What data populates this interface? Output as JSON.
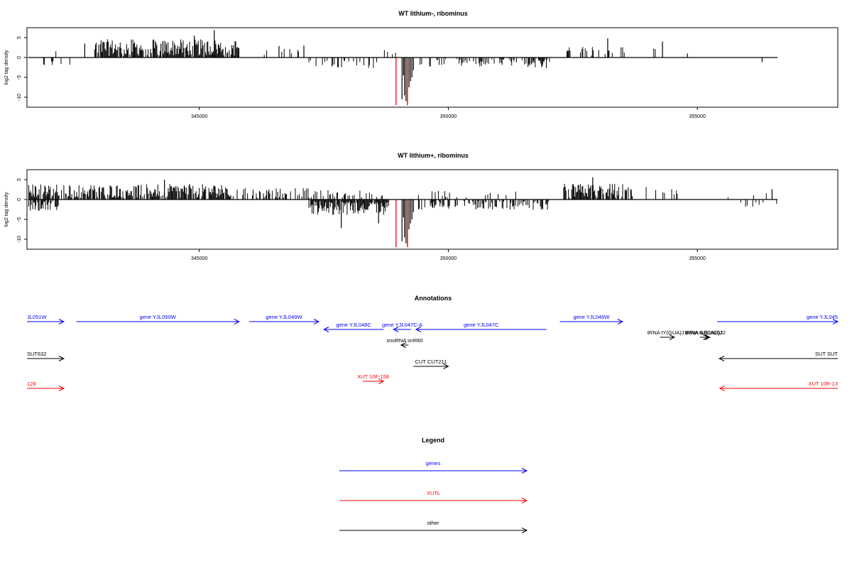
{
  "colors": {
    "gene": "#0000ff",
    "xut": "#ff0000",
    "other": "#000000",
    "signal": "#000000",
    "highlight": "#ff0000"
  },
  "chart_data": [
    {
      "type": "bar",
      "title": "WT lithium-, ribominus",
      "ylabel": "log2 tag density",
      "ylim": [
        -12.5,
        7.5
      ],
      "yticks": [
        5,
        0,
        -5,
        -10
      ],
      "ytick_labels": [
        "5",
        "0",
        "-5",
        "-10"
      ],
      "xlim": [
        341540,
        357820
      ],
      "xticks": [
        345000,
        350000,
        355000
      ],
      "xtick_labels": [
        "345000",
        "350000",
        "355000"
      ],
      "baseline": [
        341560,
        356610
      ],
      "segments": [
        {
          "x_start": 341800,
          "x_end": 342250,
          "sign": 1,
          "density": 0.12,
          "height": 2.5
        },
        {
          "x_start": 341600,
          "x_end": 342400,
          "sign": -1,
          "density": 0.15,
          "height": 2.2
        },
        {
          "x_start": 342900,
          "x_end": 345800,
          "sign": 1,
          "density": 0.85,
          "height": 4.2
        },
        {
          "x_start": 346000,
          "x_end": 347000,
          "sign": 1,
          "density": 0.1,
          "height": 1.8
        },
        {
          "x_start": 347200,
          "x_end": 348700,
          "sign": -1,
          "density": 0.3,
          "height": 2.3
        },
        {
          "x_start": 348700,
          "x_end": 349000,
          "sign": 1,
          "density": 0.2,
          "height": 1.5
        },
        {
          "x_start": 349400,
          "x_end": 351900,
          "sign": -1,
          "density": 0.3,
          "height": 2.0
        },
        {
          "x_start": 351600,
          "x_end": 352100,
          "sign": -1,
          "density": 0.6,
          "height": 2.7
        },
        {
          "x_start": 352300,
          "x_end": 353600,
          "sign": 1,
          "density": 0.3,
          "height": 2.3
        },
        {
          "x_start": 353900,
          "x_end": 354500,
          "sign": 1,
          "density": 0.08,
          "height": 2.0
        }
      ],
      "peaks": [
        {
          "x": 342700,
          "y": 3.5
        },
        {
          "x": 345300,
          "y": 6.9
        },
        {
          "x": 344900,
          "y": 5.5
        },
        {
          "x": 346600,
          "y": 2.9
        },
        {
          "x": 347100,
          "y": 3.0
        },
        {
          "x": 353200,
          "y": 4.8
        },
        {
          "x": 354300,
          "y": 4.0
        },
        {
          "x": 354800,
          "y": 1.0
        },
        {
          "x": 356300,
          "y": -1.2
        },
        {
          "x": 349070,
          "y": -10.5
        },
        {
          "x": 349120,
          "y": -9.5
        },
        {
          "x": 349150,
          "y": -11.0
        },
        {
          "x": 349180,
          "y": -11.8
        },
        {
          "x": 349210,
          "y": -7.5
        },
        {
          "x": 349240,
          "y": -6.0
        },
        {
          "x": 349270,
          "y": -5.0
        },
        {
          "x": 349100,
          "y": -4.5
        },
        {
          "x": 349300,
          "y": -3.2
        }
      ],
      "highlights": [
        {
          "x": 348950,
          "y": -12
        },
        {
          "x": 349180,
          "y": -12
        }
      ]
    },
    {
      "type": "bar",
      "title": "WT lithium+, ribominus",
      "ylabel": "log2 tag density",
      "ylim": [
        -12.5,
        7.5
      ],
      "yticks": [
        5,
        0,
        -5,
        -10
      ],
      "ytick_labels": [
        "5",
        "0",
        "-5",
        "-10"
      ],
      "xlim": [
        341540,
        357820
      ],
      "xticks": [
        345000,
        350000,
        355000
      ],
      "xtick_labels": [
        "345000",
        "350000",
        "355000"
      ],
      "baseline": [
        341560,
        356610
      ],
      "segments": [
        {
          "x_start": 341560,
          "x_end": 345600,
          "sign": 1,
          "density": 0.8,
          "height": 3.5
        },
        {
          "x_start": 341560,
          "x_end": 342200,
          "sign": -1,
          "density": 0.5,
          "height": 2.5
        },
        {
          "x_start": 345600,
          "x_end": 347200,
          "sign": 1,
          "density": 0.4,
          "height": 2.5
        },
        {
          "x_start": 347200,
          "x_end": 348800,
          "sign": 1,
          "density": 0.3,
          "height": 2.0
        },
        {
          "x_start": 347200,
          "x_end": 348800,
          "sign": -1,
          "density": 0.9,
          "height": 3.5
        },
        {
          "x_start": 349400,
          "x_end": 352100,
          "sign": -1,
          "density": 0.5,
          "height": 2.2
        },
        {
          "x_start": 349400,
          "x_end": 351500,
          "sign": 1,
          "density": 0.15,
          "height": 1.8
        },
        {
          "x_start": 352300,
          "x_end": 353700,
          "sign": 1,
          "density": 0.85,
          "height": 3.6
        },
        {
          "x_start": 353700,
          "x_end": 354600,
          "sign": 1,
          "density": 0.2,
          "height": 2.8
        },
        {
          "x_start": 355600,
          "x_end": 356600,
          "sign": -1,
          "density": 0.12,
          "height": 1.5
        },
        {
          "x_start": 355600,
          "x_end": 356600,
          "sign": 1,
          "density": 0.08,
          "height": 1.5
        }
      ],
      "peaks": [
        {
          "x": 347850,
          "y": -7.2
        },
        {
          "x": 348600,
          "y": -6.0
        },
        {
          "x": 352900,
          "y": 5.6
        },
        {
          "x": 356500,
          "y": 2.6
        },
        {
          "x": 344300,
          "y": 5.0
        },
        {
          "x": 349070,
          "y": -10.5
        },
        {
          "x": 349120,
          "y": -9.5
        },
        {
          "x": 349150,
          "y": -11.0
        },
        {
          "x": 349180,
          "y": -11.8
        },
        {
          "x": 349210,
          "y": -7.5
        },
        {
          "x": 349240,
          "y": -6.0
        },
        {
          "x": 349270,
          "y": -5.0
        },
        {
          "x": 349100,
          "y": -4.5
        },
        {
          "x": 349300,
          "y": -3.2
        }
      ],
      "highlights": [
        {
          "x": 348950,
          "y": -12
        },
        {
          "x": 349180,
          "y": -12
        }
      ]
    }
  ],
  "annotations": {
    "title": "Annotations",
    "features": [
      {
        "label": "JL051W",
        "type": "gene",
        "start": 341500,
        "end": 342280,
        "strand": "+"
      },
      {
        "label": "gene YJL050W",
        "start": 342530,
        "end": 345800,
        "type": "gene",
        "strand": "+"
      },
      {
        "label": "gene YJL049W",
        "start": 346000,
        "end": 347400,
        "type": "gene",
        "strand": "+"
      },
      {
        "label": "gene YJL048C",
        "start": 347500,
        "end": 348700,
        "type": "gene",
        "strand": "-"
      },
      {
        "label": "gene YJL047C-A",
        "start": 348900,
        "end": 349250,
        "type": "gene",
        "strand": "-"
      },
      {
        "label": "gene YJL047C",
        "start": 349350,
        "end": 351970,
        "type": "gene",
        "strand": "-"
      },
      {
        "label": "gene YJL046W",
        "start": 352240,
        "end": 353500,
        "type": "gene",
        "strand": "+"
      },
      {
        "label": "gene YJL045",
        "start": 355400,
        "end": 357900,
        "type": "gene",
        "strand": "+"
      },
      {
        "label": "tRNA tY(GUA)J1",
        "start": 354250,
        "end": 354540,
        "type": "other",
        "strand": "+"
      },
      {
        "label": "tRNA tL(UAG)J",
        "start": 355050,
        "end": 355220,
        "type": "other",
        "strand": "+"
      },
      {
        "label": "tRNA tM(CAU)J2",
        "start": 355080,
        "end": 355250,
        "type": "other",
        "strand": "+"
      },
      {
        "label": "snoRNA snR60",
        "start": 349050,
        "end": 349200,
        "type": "other",
        "strand": "-"
      },
      {
        "label": "SUT632",
        "start": 341500,
        "end": 342280,
        "type": "other",
        "strand": "+"
      },
      {
        "label": "CUT CUT211",
        "start": 349300,
        "end": 350000,
        "type": "other",
        "strand": "+"
      },
      {
        "label": "SUT SUT",
        "start": 355440,
        "end": 357900,
        "type": "other",
        "strand": "-"
      },
      {
        "label": "128",
        "start": 341500,
        "end": 342280,
        "type": "xut",
        "strand": "+"
      },
      {
        "label": "XUT 10F-158",
        "start": 348280,
        "end": 348700,
        "type": "xut",
        "strand": "+"
      },
      {
        "label": "XUT 10R-13",
        "start": 355450,
        "end": 357900,
        "type": "xut",
        "strand": "-"
      }
    ]
  },
  "legend": {
    "title": "Legend",
    "items": [
      {
        "label": "genes",
        "type": "gene"
      },
      {
        "label": "XUTs",
        "type": "xut"
      },
      {
        "label": "other",
        "type": "other"
      }
    ]
  }
}
